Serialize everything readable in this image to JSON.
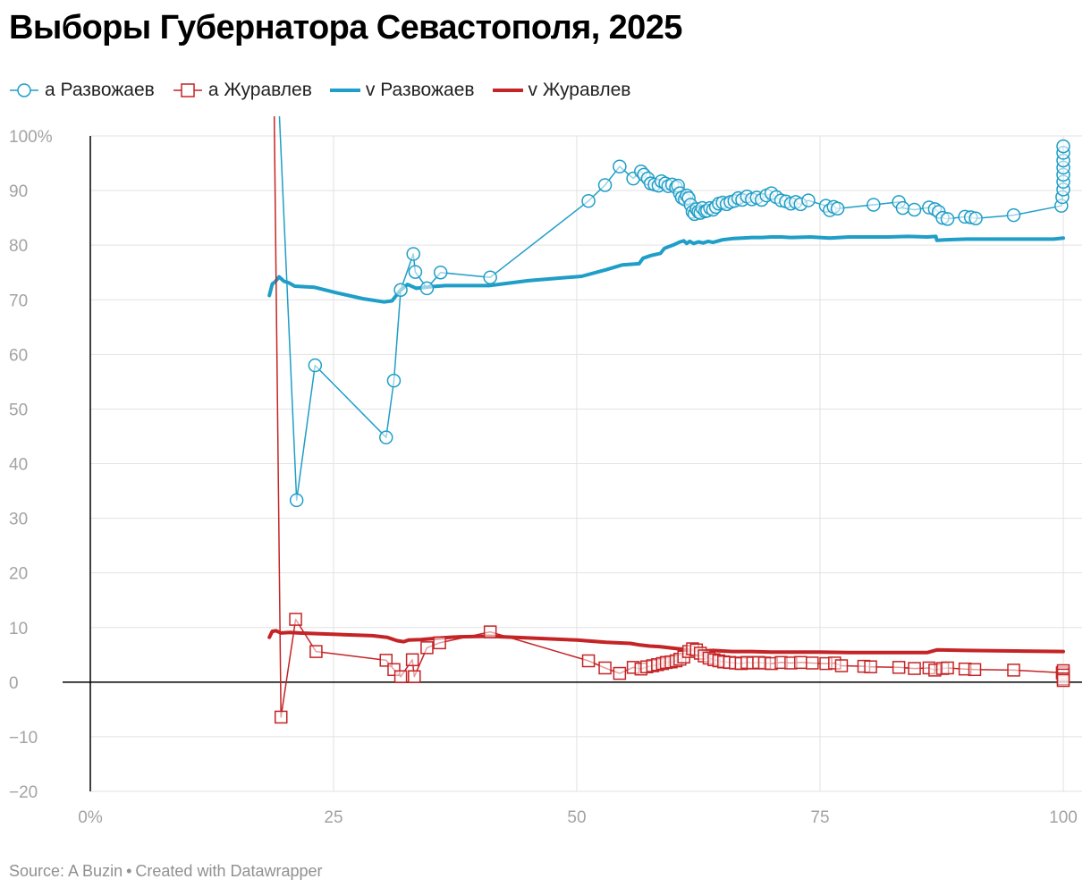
{
  "title": "Выборы Губернатора Севастополя, 2025",
  "footer": {
    "source": "Source: A Buzin",
    "separator": "•",
    "credit": "Created with Datawrapper"
  },
  "colors": {
    "blue": "#1f9ec7",
    "red": "#c42426",
    "grid": "#e2e2e2",
    "tick": "#a3a3a3",
    "axis": "#000000"
  },
  "chart_data": {
    "type": "line",
    "xlim": [
      0,
      100
    ],
    "ylim": [
      -20,
      100
    ],
    "x_ticks": [
      {
        "value": 0,
        "label": "0%"
      },
      {
        "value": 25,
        "label": "25"
      },
      {
        "value": 50,
        "label": "50"
      },
      {
        "value": 75,
        "label": "75"
      },
      {
        "value": 100,
        "label": "100"
      }
    ],
    "y_ticks": [
      {
        "value": 100,
        "label": "100%"
      },
      {
        "value": 90,
        "label": "90"
      },
      {
        "value": 80,
        "label": "80"
      },
      {
        "value": 70,
        "label": "70"
      },
      {
        "value": 60,
        "label": "60"
      },
      {
        "value": 50,
        "label": "50"
      },
      {
        "value": 40,
        "label": "40"
      },
      {
        "value": 30,
        "label": "30"
      },
      {
        "value": 20,
        "label": "20"
      },
      {
        "value": 10,
        "label": "10"
      },
      {
        "value": 0,
        "label": "0"
      },
      {
        "value": -10,
        "label": "−10"
      },
      {
        "value": -20,
        "label": "−20"
      }
    ],
    "grid": true,
    "legend_position": "top-left",
    "series": [
      {
        "name": "а Развожаев",
        "style": "line-circle",
        "color": "#1f9ec7",
        "points": [
          [
            19.4,
            105
          ],
          [
            21.2,
            33.3
          ],
          [
            23.1,
            58
          ],
          [
            30.4,
            44.8
          ],
          [
            31.2,
            55.2
          ],
          [
            31.9,
            71.8
          ],
          [
            33.2,
            78.4
          ],
          [
            33.4,
            75.1
          ],
          [
            34.6,
            72.1
          ],
          [
            36,
            75
          ],
          [
            41.1,
            74.1
          ],
          [
            51.2,
            88.1
          ],
          [
            52.9,
            91
          ],
          [
            54.4,
            94.4
          ],
          [
            55.8,
            92.2
          ],
          [
            56.6,
            93.5
          ],
          [
            56.9,
            92.9
          ],
          [
            57.3,
            92.2
          ],
          [
            57.6,
            91.3
          ],
          [
            58,
            91.1
          ],
          [
            58.4,
            90.9
          ],
          [
            58.7,
            91.7
          ],
          [
            59.1,
            91.3
          ],
          [
            59.4,
            90.8
          ],
          [
            59.8,
            91.1
          ],
          [
            60.2,
            90.6
          ],
          [
            60.4,
            90.9
          ],
          [
            60.6,
            89.5
          ],
          [
            60.8,
            88.7
          ],
          [
            61.1,
            88.4
          ],
          [
            61.3,
            89.1
          ],
          [
            61.5,
            88.6
          ],
          [
            61.7,
            87.4
          ],
          [
            61.9,
            86.1
          ],
          [
            62.1,
            85.7
          ],
          [
            62.3,
            86.6
          ],
          [
            62.5,
            86.1
          ],
          [
            62.7,
            85.9
          ],
          [
            62.9,
            86.8
          ],
          [
            63.2,
            86.2
          ],
          [
            63.4,
            86.3
          ],
          [
            63.7,
            86.8
          ],
          [
            64,
            86.5
          ],
          [
            64.3,
            87
          ],
          [
            64.6,
            87.6
          ],
          [
            65,
            87.8
          ],
          [
            65.4,
            87.5
          ],
          [
            65.8,
            87.9
          ],
          [
            66.2,
            88.1
          ],
          [
            66.6,
            88.6
          ],
          [
            67,
            88.3
          ],
          [
            67.5,
            88.9
          ],
          [
            68,
            88.4
          ],
          [
            68.5,
            88.7
          ],
          [
            69,
            88.3
          ],
          [
            69.5,
            89.1
          ],
          [
            70,
            89.5
          ],
          [
            70.5,
            88.8
          ],
          [
            71,
            88.2
          ],
          [
            71.5,
            88
          ],
          [
            72,
            87.6
          ],
          [
            72.5,
            87.9
          ],
          [
            73,
            87.5
          ],
          [
            73.8,
            88.2
          ],
          [
            75.6,
            87.2
          ],
          [
            76,
            86.4
          ],
          [
            76.4,
            87
          ],
          [
            76.8,
            86.7
          ],
          [
            80.5,
            87.4
          ],
          [
            83.1,
            87.9
          ],
          [
            83.5,
            86.8
          ],
          [
            84.7,
            86.5
          ],
          [
            86.2,
            86.9
          ],
          [
            86.8,
            86.6
          ],
          [
            87.2,
            86.1
          ],
          [
            87.6,
            85
          ],
          [
            88.1,
            84.8
          ],
          [
            89.9,
            85.2
          ],
          [
            90.5,
            85.1
          ],
          [
            91,
            84.9
          ],
          [
            94.9,
            85.5
          ],
          [
            99.8,
            87.2
          ],
          [
            99.9,
            88.8
          ],
          [
            100,
            90.2
          ],
          [
            100,
            91.6
          ],
          [
            100,
            92.9
          ],
          [
            100,
            94.2
          ],
          [
            100,
            95.5
          ],
          [
            100,
            96.9
          ],
          [
            100,
            98.1
          ]
        ]
      },
      {
        "name": "а Журавлев",
        "style": "line-square",
        "color": "#c42426",
        "points": [
          [
            18.9,
            105
          ],
          [
            19.6,
            -6.4
          ],
          [
            21.1,
            11.5
          ],
          [
            23.2,
            5.6
          ],
          [
            30.4,
            4
          ],
          [
            31.2,
            2.3
          ],
          [
            31.9,
            1
          ],
          [
            33.1,
            4.1
          ],
          [
            33.3,
            1
          ],
          [
            34.6,
            6.3
          ],
          [
            35.9,
            7.2
          ],
          [
            41.1,
            9.2
          ],
          [
            51.2,
            3.9
          ],
          [
            52.9,
            2.6
          ],
          [
            54.4,
            1.6
          ],
          [
            55.8,
            2.7
          ],
          [
            56.6,
            2.4
          ],
          [
            57.2,
            2.8
          ],
          [
            57.8,
            3
          ],
          [
            58.3,
            3.2
          ],
          [
            58.8,
            3.4
          ],
          [
            59.2,
            3.6
          ],
          [
            59.7,
            3.7
          ],
          [
            60.2,
            3.9
          ],
          [
            60.6,
            4.2
          ],
          [
            61,
            4.6
          ],
          [
            61.5,
            5.6
          ],
          [
            61.9,
            6.1
          ],
          [
            62.3,
            5.9
          ],
          [
            62.7,
            5.3
          ],
          [
            63.1,
            4.8
          ],
          [
            63.6,
            4.4
          ],
          [
            64.1,
            4.1
          ],
          [
            64.6,
            3.9
          ],
          [
            65.1,
            3.7
          ],
          [
            65.7,
            3.6
          ],
          [
            66.3,
            3.5
          ],
          [
            66.9,
            3.4
          ],
          [
            67.5,
            3.6
          ],
          [
            68.1,
            3.5
          ],
          [
            68.7,
            3.6
          ],
          [
            69.3,
            3.5
          ],
          [
            70,
            3.4
          ],
          [
            71,
            3.6
          ],
          [
            72,
            3.5
          ],
          [
            73,
            3.6
          ],
          [
            74.2,
            3.5
          ],
          [
            75.6,
            3.4
          ],
          [
            76.5,
            3.5
          ],
          [
            77.2,
            3
          ],
          [
            79.5,
            2.9
          ],
          [
            80.2,
            2.8
          ],
          [
            83.1,
            2.7
          ],
          [
            84.7,
            2.5
          ],
          [
            86.2,
            2.6
          ],
          [
            86.8,
            2.2
          ],
          [
            87.6,
            2.5
          ],
          [
            88.1,
            2.6
          ],
          [
            89.9,
            2.4
          ],
          [
            90.9,
            2.3
          ],
          [
            94.9,
            2.2
          ],
          [
            99.9,
            1.7
          ],
          [
            100,
            2.1
          ],
          [
            100,
            1.3
          ],
          [
            100,
            0.6
          ],
          [
            100,
            0.3
          ]
        ]
      },
      {
        "name": "v Развожаев",
        "style": "line",
        "color": "#1f9ec7",
        "points": [
          [
            18.4,
            70.8
          ],
          [
            18.7,
            72.9
          ],
          [
            19,
            73.3
          ],
          [
            19.4,
            74.2
          ],
          [
            19.9,
            73.4
          ],
          [
            20.4,
            73.1
          ],
          [
            21,
            72.5
          ],
          [
            23,
            72.3
          ],
          [
            25.5,
            71.2
          ],
          [
            28,
            70.2
          ],
          [
            30.2,
            69.6
          ],
          [
            31,
            69.8
          ],
          [
            31.9,
            71.8
          ],
          [
            32.6,
            72.8
          ],
          [
            33.5,
            72.1
          ],
          [
            35,
            72.4
          ],
          [
            36.5,
            72.6
          ],
          [
            41,
            72.6
          ],
          [
            45,
            73.5
          ],
          [
            50.5,
            74.3
          ],
          [
            53,
            75.5
          ],
          [
            54.7,
            76.4
          ],
          [
            56.4,
            76.6
          ],
          [
            56.8,
            77.6
          ],
          [
            57.6,
            78.1
          ],
          [
            58.6,
            78.5
          ],
          [
            59,
            79.4
          ],
          [
            59.4,
            79.7
          ],
          [
            60,
            80.1
          ],
          [
            60.6,
            80.6
          ],
          [
            61,
            80.8
          ],
          [
            61.3,
            80.3
          ],
          [
            61.6,
            80.7
          ],
          [
            62,
            80.3
          ],
          [
            62.5,
            80.6
          ],
          [
            63,
            80.4
          ],
          [
            63.5,
            80.7
          ],
          [
            64,
            80.5
          ],
          [
            65,
            81
          ],
          [
            66,
            81.2
          ],
          [
            67,
            81.3
          ],
          [
            68,
            81.4
          ],
          [
            69,
            81.4
          ],
          [
            70,
            81.5
          ],
          [
            71,
            81.5
          ],
          [
            72,
            81.4
          ],
          [
            74,
            81.5
          ],
          [
            76,
            81.3
          ],
          [
            78,
            81.5
          ],
          [
            80,
            81.5
          ],
          [
            82,
            81.5
          ],
          [
            84,
            81.6
          ],
          [
            86,
            81.5
          ],
          [
            86.9,
            81.6
          ],
          [
            87,
            80.9
          ],
          [
            88,
            81
          ],
          [
            90,
            81.1
          ],
          [
            92,
            81.1
          ],
          [
            95,
            81.1
          ],
          [
            97,
            81.1
          ],
          [
            99,
            81.1
          ],
          [
            100,
            81.3
          ]
        ]
      },
      {
        "name": "v Журавлев",
        "style": "line",
        "color": "#c42426",
        "points": [
          [
            18.4,
            8.2
          ],
          [
            18.7,
            9.3
          ],
          [
            19.1,
            9.4
          ],
          [
            19.6,
            9
          ],
          [
            20.5,
            9.1
          ],
          [
            21.5,
            9
          ],
          [
            23,
            8.9
          ],
          [
            26,
            8.7
          ],
          [
            29,
            8.5
          ],
          [
            30.5,
            8.2
          ],
          [
            31.5,
            7.6
          ],
          [
            32.2,
            7.4
          ],
          [
            32.7,
            7.7
          ],
          [
            34,
            7.8
          ],
          [
            36,
            8.1
          ],
          [
            38,
            8.3
          ],
          [
            41,
            8.4
          ],
          [
            45,
            8.1
          ],
          [
            50,
            7.7
          ],
          [
            53,
            7.3
          ],
          [
            55.5,
            7.1
          ],
          [
            56.5,
            6.8
          ],
          [
            57.5,
            6.6
          ],
          [
            58.5,
            6.5
          ],
          [
            60,
            6.2
          ],
          [
            61,
            6
          ],
          [
            62,
            5.9
          ],
          [
            63,
            5.7
          ],
          [
            64,
            5.8
          ],
          [
            66,
            5.6
          ],
          [
            68,
            5.6
          ],
          [
            70,
            5.5
          ],
          [
            72,
            5.5
          ],
          [
            75,
            5.5
          ],
          [
            78,
            5.4
          ],
          [
            82,
            5.4
          ],
          [
            86,
            5.4
          ],
          [
            87,
            5.9
          ],
          [
            90,
            5.8
          ],
          [
            95,
            5.7
          ],
          [
            100,
            5.6
          ]
        ]
      }
    ]
  }
}
